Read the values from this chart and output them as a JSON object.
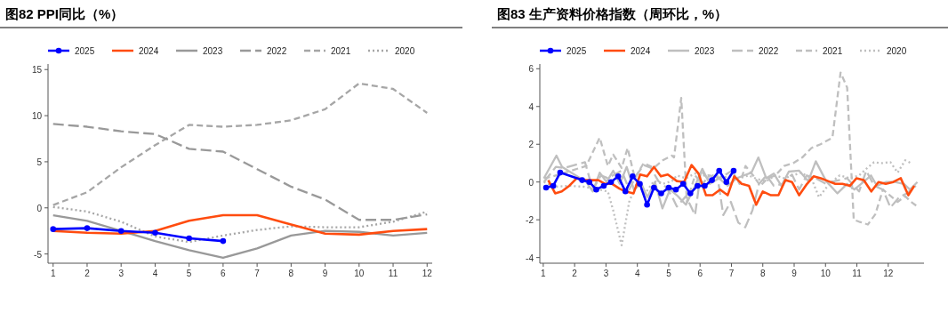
{
  "chart_data": [
    {
      "type": "line",
      "title": "图82 PPI同比（%）",
      "x": [
        1,
        2,
        3,
        4,
        5,
        6,
        7,
        8,
        9,
        10,
        11,
        12
      ],
      "xlim": [
        0.85,
        12.15
      ],
      "xticks": [
        1,
        2,
        3,
        4,
        5,
        6,
        7,
        8,
        9,
        10,
        11,
        12
      ],
      "ylim": [
        -6,
        15.6
      ],
      "yticks": [
        -5,
        0,
        5,
        10,
        15
      ],
      "grid": false,
      "legend": "top",
      "series": [
        {
          "name": "2025",
          "color": "#0000ff",
          "marker": "circle",
          "line_style": "solid",
          "values": [
            -2.3,
            -2.2,
            -2.5,
            -2.7,
            -3.3,
            -3.6,
            null,
            null,
            null,
            null,
            null,
            null
          ]
        },
        {
          "name": "2024",
          "color": "#ff4c0f",
          "line_style": "solid",
          "values": [
            -2.5,
            -2.7,
            -2.8,
            -2.5,
            -1.4,
            -0.8,
            -0.8,
            -1.8,
            -2.8,
            -2.9,
            -2.5,
            -2.3
          ]
        },
        {
          "name": "2023",
          "color": "#999999",
          "line_style": "solid",
          "values": [
            -0.8,
            -1.4,
            -2.5,
            -3.6,
            -4.6,
            -5.4,
            -4.4,
            -3.0,
            -2.5,
            -2.6,
            -3.0,
            -2.7
          ]
        },
        {
          "name": "2022",
          "color": "#999999",
          "line_style": "dashed",
          "values": [
            9.1,
            8.8,
            8.3,
            8.0,
            6.4,
            6.1,
            4.2,
            2.3,
            0.9,
            -1.3,
            -1.3,
            -0.7
          ]
        },
        {
          "name": "2021",
          "color": "#a6a6a6",
          "line_style": "dashed",
          "values": [
            0.3,
            1.7,
            4.4,
            6.8,
            9.0,
            8.8,
            9.0,
            9.5,
            10.7,
            13.5,
            12.9,
            10.3
          ]
        },
        {
          "name": "2020",
          "color": "#a6a6a6",
          "line_style": "dotted",
          "values": [
            0.1,
            -0.4,
            -1.5,
            -3.1,
            -3.7,
            -3.0,
            -2.4,
            -2.0,
            -2.1,
            -2.1,
            -1.5,
            -0.4
          ]
        }
      ]
    },
    {
      "type": "line",
      "title": "图83 生产资料价格指数（周环比，%）",
      "xlim": [
        0.89,
        13.14
      ],
      "xticks": [
        1,
        2,
        3,
        4,
        5,
        6,
        7,
        8,
        9,
        10,
        11,
        12
      ],
      "ylim": [
        -4.3,
        6.25
      ],
      "yticks": [
        -4,
        -2,
        0,
        2,
        4,
        6
      ],
      "grid": false,
      "legend": "top",
      "series": [
        {
          "name": "2025",
          "color": "#0000ff",
          "marker": "circle",
          "line_style": "solid",
          "x": [
            1.09,
            1.32,
            1.54,
            2.24,
            2.47,
            2.69,
            2.93,
            3.16,
            3.39,
            3.62,
            3.85,
            4.08,
            4.31,
            4.53,
            4.76,
            5.0,
            5.23,
            5.46,
            5.69,
            5.92,
            6.15,
            6.38,
            6.61,
            6.84,
            7.07
          ],
          "values": [
            -0.3,
            -0.2,
            0.5,
            0.1,
            0,
            -0.4,
            -0.2,
            0,
            0.3,
            -0.5,
            0.3,
            -0.1,
            -1.2,
            -0.3,
            -0.6,
            -0.3,
            -0.4,
            -0.1,
            -0.6,
            -0.2,
            -0.2,
            0.1,
            0.6,
            0,
            0.6
          ]
        },
        {
          "name": "2024",
          "color": "#ff4c0f",
          "line_style": "solid",
          "x": [
            1.16,
            1.38,
            1.59,
            1.83,
            2.07,
            2.3,
            2.54,
            2.76,
            2.97,
            3.2,
            3.43,
            3.62,
            3.88,
            4.09,
            4.31,
            4.53,
            4.75,
            4.97,
            5.26,
            5.49,
            5.73,
            5.95,
            6.19,
            6.4,
            6.64,
            6.88,
            7.09,
            7.33,
            7.56,
            7.79,
            8.0,
            8.26,
            8.5,
            8.72,
            8.93,
            9.16,
            9.41,
            9.62,
            9.85,
            10.08,
            10.31,
            10.54,
            10.78,
            10.99,
            11.22,
            11.46,
            11.69,
            11.92,
            12.16,
            12.4,
            12.64,
            12.83
          ],
          "values": [
            0.1,
            -0.6,
            -0.5,
            -0.2,
            0.2,
            0.1,
            0.1,
            0.1,
            -0.1,
            -0.1,
            -0.35,
            -0.5,
            -0.6,
            0.4,
            0.3,
            0.8,
            0.3,
            0.4,
            0.05,
            0,
            0.9,
            0.45,
            -0.7,
            -0.7,
            -0.4,
            -0.7,
            0.3,
            -0.1,
            -0.2,
            -1.2,
            -0.5,
            -0.7,
            -0.7,
            0.1,
            0,
            -0.7,
            -0.1,
            0.3,
            0.2,
            0.05,
            -0.1,
            -0.1,
            -0.2,
            0.2,
            0.1,
            -0.5,
            0,
            -0.1,
            0,
            0.2,
            -0.7,
            -0.2
          ]
        },
        {
          "name": "2023",
          "color": "#bfbfbf",
          "line_style": "solid",
          "x": [
            1.02,
            1.42,
            1.6,
            1.99,
            2.37,
            2.58,
            2.8,
            3.02,
            3.23,
            3.44,
            3.66,
            3.89,
            4.13,
            4.32,
            4.56,
            4.8,
            5.04,
            5.26,
            5.55,
            5.84,
            6.07,
            6.31,
            6.6,
            6.88,
            7.17,
            7.4,
            7.64,
            7.86,
            8.11,
            8.35,
            8.59,
            8.83,
            9.16,
            9.45,
            9.69,
            10.02,
            10.38,
            10.69,
            10.92,
            11.21,
            11.45,
            11.64,
            11.92,
            12.21,
            12.5,
            12.69,
            12.93
          ],
          "values": [
            0.2,
            1.4,
            0.8,
            0.4,
            0,
            -0.5,
            0.5,
            0,
            0.6,
            -0.1,
            0.8,
            -0.4,
            -0.1,
            -0.8,
            0,
            -1.4,
            -0.4,
            -0.7,
            -1.2,
            -0.2,
            0.7,
            -0.1,
            0.2,
            -0.2,
            0.2,
            0.35,
            0.5,
            1.3,
            0.2,
            0.45,
            -0.2,
            0.55,
            0.6,
            0.05,
            1.1,
            0.05,
            -0.6,
            -0.1,
            -0.4,
            0,
            0.35,
            -0.2,
            0,
            0,
            -0.1,
            -0.4,
            0
          ]
        },
        {
          "name": "2022",
          "color": "#bfbfbf",
          "line_style": "dashed",
          "x": [
            1.02,
            1.4,
            1.67,
            2.33,
            2.58,
            2.84,
            3.06,
            3.5,
            3.74,
            3.97,
            4.2,
            4.43,
            4.67,
            4.9,
            5.1,
            5.26,
            5.55,
            5.84,
            6.03,
            6.31,
            6.55,
            6.74,
            6.98,
            7.22,
            7.44,
            7.67,
            7.88,
            8.12,
            8.35,
            8.64,
            8.93,
            9.16,
            9.4,
            9.69,
            10.02,
            10.3,
            10.69,
            11.07,
            11.3,
            11.55,
            11.83,
            12.07,
            12.35,
            12.6,
            12.88
          ],
          "values": [
            0,
            0.8,
            0.75,
            1.05,
            -0.4,
            0.35,
            0.2,
            0.6,
            -0.4,
            0.35,
            0.9,
            0.75,
            0.05,
            -0.25,
            -0.75,
            -1.3,
            -0.75,
            -1.75,
            0.6,
            0.05,
            0.35,
            -1.75,
            -1.05,
            -2.15,
            -2.4,
            -1.5,
            -0.1,
            0.35,
            -0.2,
            -0.1,
            0.4,
            -0.4,
            0.35,
            0.2,
            -0.1,
            0.05,
            0.2,
            -0.5,
            0.6,
            -0.2,
            -0.4,
            -1.35,
            -0.8,
            -0.6,
            -0.2
          ]
        },
        {
          "name": "2021",
          "color": "#bfbfbf",
          "line_style": "dashed",
          "x": [
            1.02,
            1.31,
            2.37,
            2.8,
            3.06,
            3.23,
            3.5,
            3.69,
            3.92,
            4.2,
            4.53,
            4.81,
            5.1,
            5.17,
            5.4,
            5.58,
            5.84,
            6.07,
            6.31,
            6.55,
            6.78,
            7.02,
            7.26,
            7.45,
            7.69,
            7.92,
            8.16,
            8.4,
            8.68,
            8.97,
            9.26,
            9.55,
            9.84,
            10.22,
            10.48,
            10.69,
            10.9,
            11.07,
            11.35,
            11.59,
            11.83,
            12.3,
            12.54,
            12.73,
            12.97
          ],
          "values": [
            0.2,
            0.3,
            0.85,
            2.35,
            0.85,
            1.45,
            0.75,
            1.8,
            0.2,
            1.0,
            0.75,
            1.15,
            1.4,
            1.3,
            4.45,
            -1.05,
            0.35,
            -0.1,
            0.35,
            0.2,
            0.35,
            0.6,
            -0.1,
            0.85,
            0.35,
            -0.2,
            0.2,
            0.35,
            0.85,
            1.0,
            1.3,
            1.8,
            2.0,
            2.35,
            5.8,
            5.0,
            -2.0,
            -2.1,
            -2.25,
            -1.7,
            -0.4,
            -1.05,
            -0.75,
            -1.05,
            -1.35
          ]
        },
        {
          "name": "2020",
          "color": "#bfbfbf",
          "line_style": "dotted",
          "x": [
            1.02,
            1.35,
            1.83,
            2.3,
            2.78,
            3.06,
            3.23,
            3.5,
            3.74,
            3.97,
            4.25,
            4.53,
            4.81,
            5.1,
            5.26,
            5.55,
            5.84,
            6.12,
            6.4,
            6.69,
            6.98,
            7.26,
            7.55,
            7.83,
            8.12,
            8.4,
            8.68,
            8.97,
            9.21,
            9.55,
            9.79,
            10.12,
            10.45,
            10.78,
            11.07,
            11.3,
            11.55,
            11.78,
            12.07,
            12.3,
            12.54,
            12.73
          ],
          "values": [
            0,
            -0.25,
            -0.2,
            -0.25,
            -0.4,
            -0.5,
            -1.5,
            -3.35,
            -1.05,
            -0.1,
            -0.6,
            0.05,
            -0.1,
            0.05,
            0.35,
            0.2,
            0.45,
            0.35,
            0.35,
            0.2,
            0.35,
            0.2,
            0.35,
            0.15,
            0.05,
            0.35,
            0.2,
            0.35,
            0.5,
            0.2,
            -0.8,
            -0.1,
            0.35,
            0.2,
            0.35,
            0.7,
            1.05,
            1.0,
            1.05,
            0.5,
            1.15,
            1.0
          ]
        }
      ]
    }
  ]
}
